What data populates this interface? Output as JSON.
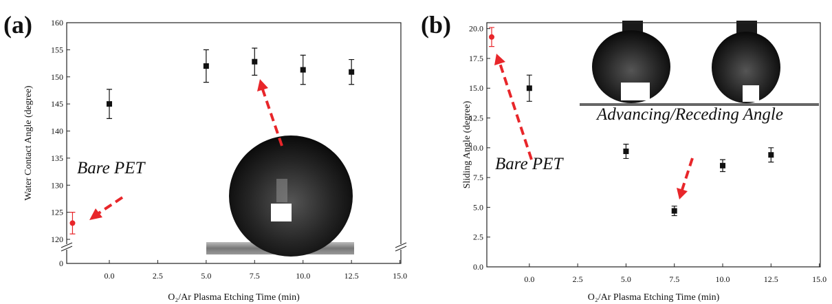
{
  "chart_data": [
    {
      "type": "scatter",
      "panel_label": "(a)",
      "x_label": "O₂/Ar Plasma Etching Time (min)",
      "y_label": "Water Contact Angle (degree)",
      "annotations": [
        "Bare PET"
      ],
      "xlim": [
        -2.2,
        15.05
      ],
      "ylim": [
        0,
        160
      ],
      "ybreak": [
        0,
        120
      ],
      "xticks": [
        {
          "value": 0,
          "label": "0.0"
        },
        {
          "value": 2.5,
          "label": "2.5"
        },
        {
          "value": 5,
          "label": "5.0"
        },
        {
          "value": 7.5,
          "label": "7.5"
        },
        {
          "value": 10,
          "label": "10.0"
        },
        {
          "value": 12.5,
          "label": "12.5"
        },
        {
          "value": 15,
          "label": "15.0"
        }
      ],
      "yticks": [
        0,
        120,
        125,
        130,
        135,
        140,
        145,
        150,
        155,
        160
      ],
      "series": [
        {
          "color": "#e8262a",
          "marker": "circle",
          "x": [
            -1.9
          ],
          "values": [
            123
          ],
          "errors": [
            2
          ]
        },
        {
          "color": "#111111",
          "marker": "square",
          "x": [
            0,
            5,
            7.5,
            10,
            12.5
          ],
          "values": [
            145,
            152,
            152.8,
            151.3,
            150.9
          ],
          "errors": [
            2.7,
            3,
            2.5,
            2.7,
            2.3
          ]
        }
      ]
    },
    {
      "type": "scatter",
      "panel_label": "(b)",
      "x_label": "O₂/Ar Plasma Etching Time (min)",
      "y_label": "Sliding Angle (degree)",
      "annotations": [
        "Bare PET",
        "Advancing/Receding Angle"
      ],
      "xlim": [
        -2.2,
        15.05
      ],
      "ylim": [
        0,
        20.5
      ],
      "xticks": [
        {
          "value": 0,
          "label": "0.0"
        },
        {
          "value": 2.5,
          "label": "2.5"
        },
        {
          "value": 5,
          "label": "5.0"
        },
        {
          "value": 7.5,
          "label": "7.5"
        },
        {
          "value": 10,
          "label": "10.0"
        },
        {
          "value": 12.5,
          "label": "12.5"
        },
        {
          "value": 15,
          "label": "15.0"
        }
      ],
      "yticks": [
        {
          "value": 0,
          "label": "0.0"
        },
        {
          "value": 2.5,
          "label": "2.5"
        },
        {
          "value": 5,
          "label": "5.0"
        },
        {
          "value": 7.5,
          "label": "7.5"
        },
        {
          "value": 10,
          "label": "10.0"
        },
        {
          "value": 12.5,
          "label": "12.5"
        },
        {
          "value": 15,
          "label": "15.0"
        },
        {
          "value": 17.5,
          "label": "17.5"
        },
        {
          "value": 20,
          "label": "20.0"
        }
      ],
      "series": [
        {
          "color": "#e8262a",
          "marker": "circle",
          "x": [
            -1.95
          ],
          "values": [
            19.3
          ],
          "errors": [
            0.8
          ]
        },
        {
          "color": "#111111",
          "marker": "square",
          "x": [
            0,
            5,
            7.5,
            10,
            12.5
          ],
          "values": [
            15,
            9.7,
            4.7,
            8.5,
            9.4
          ],
          "errors": [
            1.1,
            0.6,
            0.4,
            0.5,
            0.6
          ]
        }
      ]
    }
  ]
}
